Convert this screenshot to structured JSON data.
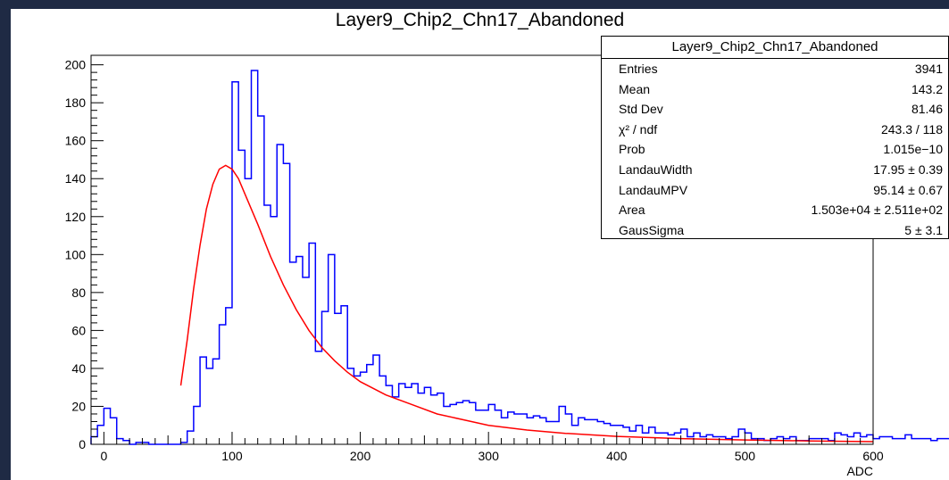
{
  "chart_data": {
    "type": "histogram",
    "title": "Layer9_Chip2_Chn17_Abandoned",
    "xlabel": "ADC",
    "ylabel": "",
    "xlim": [
      -10,
      600
    ],
    "ylim": [
      0,
      205
    ],
    "x_ticks": [
      0,
      100,
      200,
      300,
      400,
      500,
      600
    ],
    "y_ticks": [
      0,
      20,
      40,
      60,
      80,
      100,
      120,
      140,
      160,
      180,
      200
    ],
    "bin_width": 5,
    "bin_start": -10,
    "histogram_color": "#0000ff",
    "fit_color": "#ff0000",
    "counts": [
      4,
      10,
      19,
      14,
      3,
      2,
      0,
      1,
      1,
      0,
      0,
      0,
      0,
      0,
      1,
      7,
      20,
      46,
      40,
      45,
      63,
      72,
      191,
      155,
      140,
      197,
      173,
      126,
      120,
      158,
      148,
      96,
      99,
      88,
      106,
      49,
      70,
      100,
      69,
      73,
      40,
      36,
      38,
      42,
      47,
      36,
      31,
      25,
      32,
      30,
      32,
      27,
      30,
      26,
      27,
      20,
      21,
      22,
      23,
      22,
      18,
      18,
      21,
      18,
      14,
      17,
      16,
      16,
      14,
      15,
      14,
      12,
      12,
      20,
      16,
      10,
      14,
      13,
      13,
      12,
      11,
      10,
      10,
      9,
      7,
      10,
      6,
      9,
      6,
      6,
      5,
      6,
      8,
      4,
      6,
      4,
      5,
      4,
      4,
      3,
      4,
      8,
      6,
      3,
      3,
      2,
      3,
      4,
      3,
      4,
      2,
      2,
      3,
      3,
      3,
      2,
      6,
      5,
      4,
      6,
      4,
      5,
      3,
      4,
      4,
      3,
      3,
      5,
      3,
      3,
      3,
      2,
      3,
      3,
      3,
      2,
      4,
      2,
      2,
      2,
      3,
      2,
      2,
      2,
      3,
      2,
      2,
      2,
      3,
      2,
      1,
      3,
      3,
      2,
      2,
      3,
      1,
      2,
      3,
      1,
      2,
      2,
      2
    ],
    "fit_curve": {
      "x": [
        60,
        65,
        70,
        75,
        80,
        85,
        90,
        95,
        100,
        105,
        110,
        120,
        130,
        140,
        150,
        160,
        170,
        180,
        190,
        200,
        220,
        240,
        260,
        280,
        300,
        330,
        360,
        400,
        450,
        500,
        550,
        600
      ],
      "y": [
        31,
        55,
        82,
        105,
        124,
        137,
        145,
        147,
        145,
        140,
        132,
        116,
        99,
        84,
        71,
        60,
        51,
        44,
        38,
        33,
        26,
        21,
        16,
        13,
        10,
        7.5,
        5.8,
        4.2,
        3,
        2.3,
        1.8,
        1.4
      ]
    }
  },
  "stats": {
    "title": "Layer9_Chip2_Chn17_Abandoned",
    "rows": [
      {
        "k": "Entries",
        "v": "3941"
      },
      {
        "k": "Mean",
        "v": "143.2"
      },
      {
        "k": "Std Dev",
        "v": "81.46"
      },
      {
        "k": "χ² / ndf",
        "v": "243.3 / 118"
      },
      {
        "k": "Prob",
        "v": "1.015e−10"
      },
      {
        "k": "LandauWidth",
        "v": "17.95  ± 0.39"
      },
      {
        "k": "LandauMPV",
        "v": "95.14  ± 0.67"
      },
      {
        "k": "Area",
        "v": "1.503e+04  ± 2.511e+02"
      },
      {
        "k": "GausSigma",
        "v": "5  ± 3.1"
      }
    ]
  }
}
